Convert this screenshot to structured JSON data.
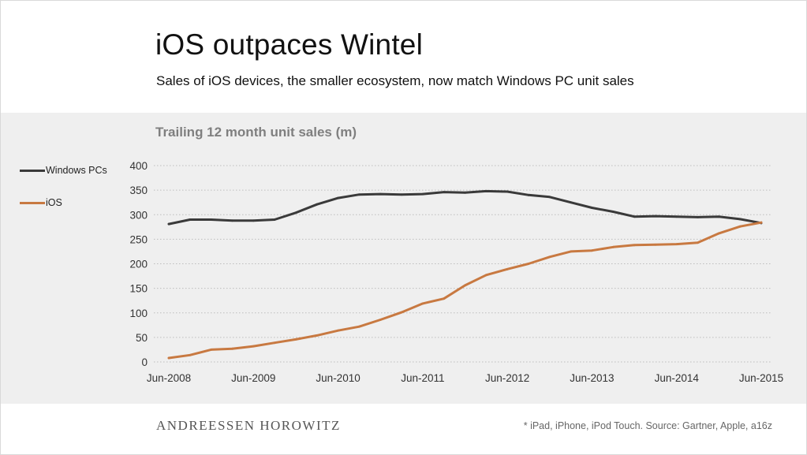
{
  "header": {
    "title": "iOS outpaces Wintel",
    "subtitle": "Sales of iOS devices, the smaller ecosystem, now match Windows PC unit sales"
  },
  "footer": {
    "brand": "ANDREESSEN HOROWITZ",
    "note": "* iPad, iPhone, iPod Touch. Source: Gartner, Apple, a16z"
  },
  "colors": {
    "windows": "#3a3a3a",
    "ios": "#c87941",
    "grid": "#bdbdbd",
    "panel": "#efefef"
  },
  "chart_data": {
    "type": "line",
    "title": "Trailing 12 month unit sales (m)",
    "xlabel": "",
    "ylabel": "",
    "ylim": [
      0,
      400
    ],
    "yticks": [
      0,
      50,
      100,
      150,
      200,
      250,
      300,
      350,
      400
    ],
    "x_tick_labels": [
      "Jun-2008",
      "Jun-2009",
      "Jun-2010",
      "Jun-2011",
      "Jun-2012",
      "Jun-2013",
      "Jun-2014",
      "Jun-2015"
    ],
    "grid": true,
    "legend_position": "left",
    "series": [
      {
        "name": "Windows PCs",
        "key": "windows",
        "values": [
          281,
          290,
          290,
          288,
          288,
          290,
          304,
          321,
          334,
          341,
          342,
          341,
          342,
          346,
          345,
          348,
          347,
          340,
          336,
          325,
          314,
          306,
          296,
          297,
          296,
          295,
          296,
          291,
          283
        ]
      },
      {
        "name": "iOS",
        "key": "ios",
        "values": [
          8,
          14,
          25,
          27,
          32,
          39,
          46,
          54,
          64,
          72,
          86,
          101,
          119,
          129,
          156,
          177,
          189,
          200,
          214,
          225,
          227,
          234,
          238,
          239,
          240,
          243,
          262,
          276,
          284
        ]
      }
    ]
  }
}
